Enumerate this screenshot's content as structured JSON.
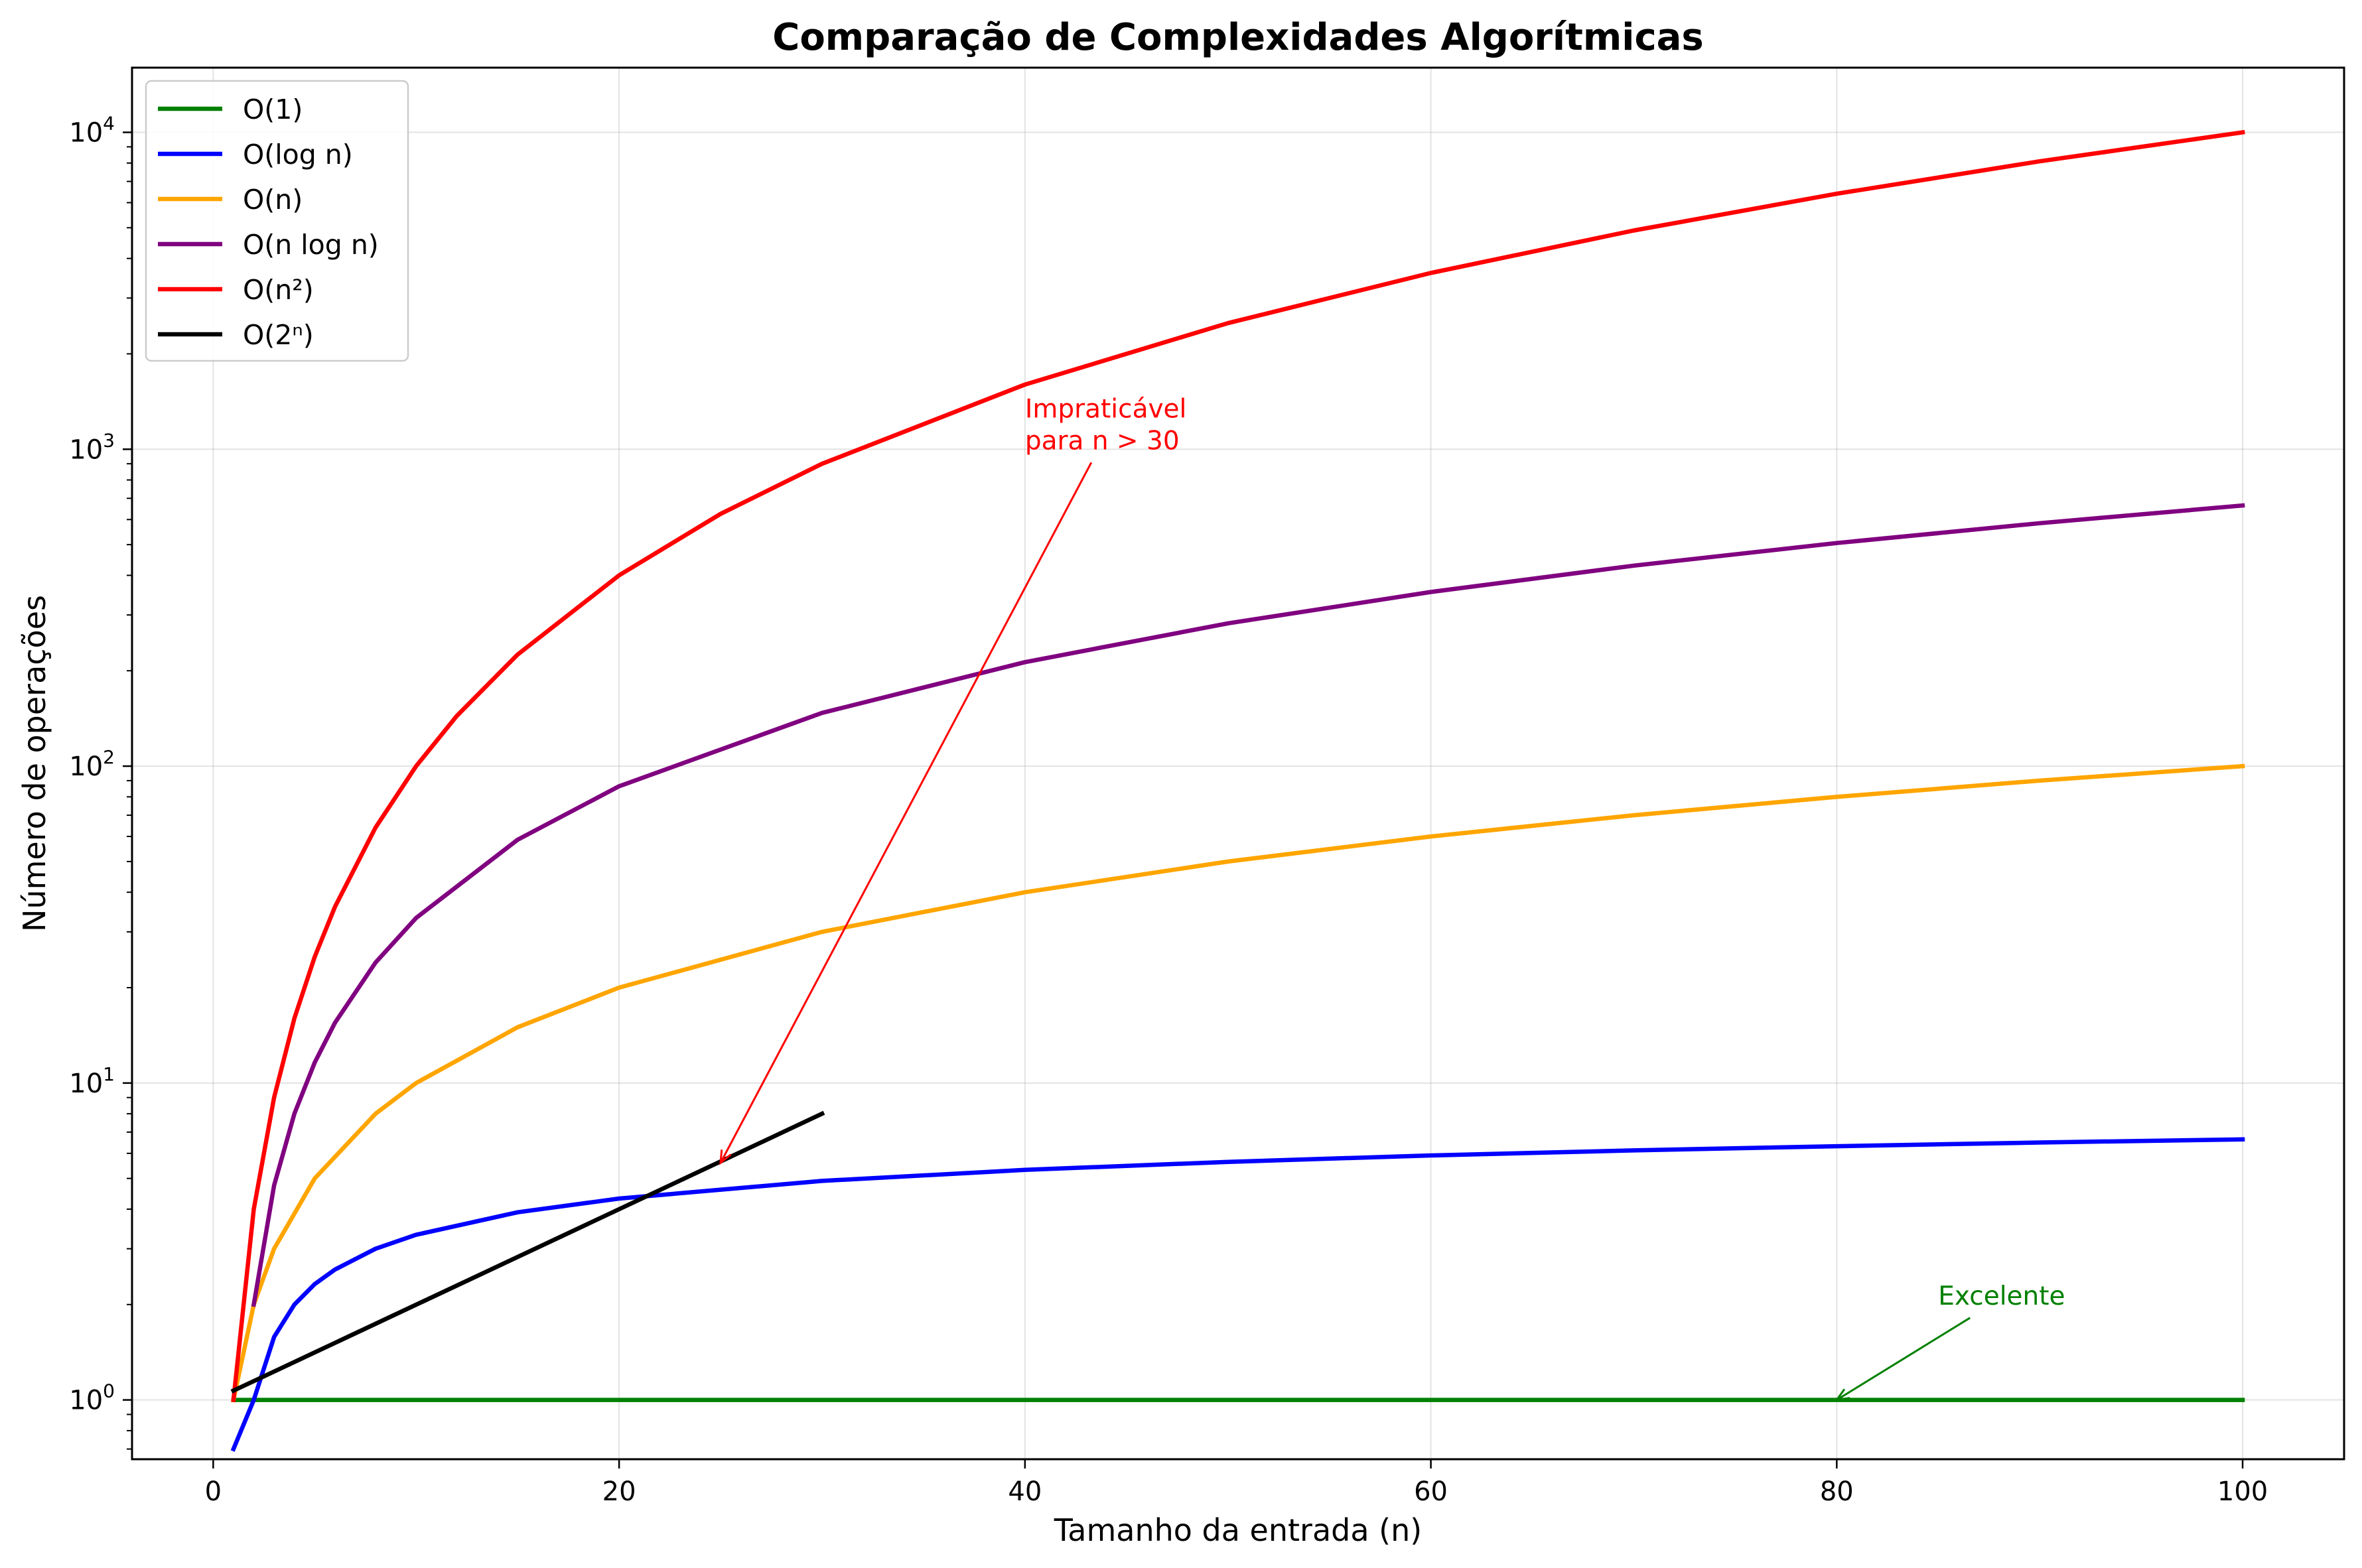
{
  "chart_data": {
    "type": "line",
    "title": "Comparação de Complexidades Algorítmicas",
    "xlabel": "Tamanho da entrada (n)",
    "ylabel": "Número de operações",
    "xlim": [
      -4,
      105
    ],
    "ylim": [
      0.65,
      16000
    ],
    "yscale": "log",
    "grid": true,
    "legend_position": "top-left",
    "x_ticks": [
      0,
      20,
      40,
      60,
      80,
      100
    ],
    "x_tick_labels": [
      "0",
      "20",
      "40",
      "60",
      "80",
      "100"
    ],
    "y_ticks": [
      1,
      10,
      100,
      1000,
      10000
    ],
    "y_tick_labels": [
      {
        "base": "10",
        "exp": "0"
      },
      {
        "base": "10",
        "exp": "1"
      },
      {
        "base": "10",
        "exp": "2"
      },
      {
        "base": "10",
        "exp": "3"
      },
      {
        "base": "10",
        "exp": "4"
      }
    ],
    "series": [
      {
        "name": "O(1)",
        "color": "#008000",
        "x": [
          1,
          100
        ],
        "y": [
          1,
          1
        ]
      },
      {
        "name": "O(log n)",
        "color": "#0000ff",
        "x": [
          1,
          2,
          3,
          4,
          5,
          6,
          8,
          10,
          15,
          20,
          30,
          40,
          50,
          60,
          70,
          80,
          90,
          100
        ],
        "y": [
          0.7,
          1.0,
          1.58,
          2.0,
          2.32,
          2.58,
          3.0,
          3.32,
          3.91,
          4.32,
          4.91,
          5.32,
          5.64,
          5.91,
          6.13,
          6.32,
          6.49,
          6.64
        ]
      },
      {
        "name": "O(n)",
        "color": "#ffa500",
        "x": [
          1,
          2,
          3,
          5,
          8,
          10,
          15,
          20,
          30,
          40,
          50,
          60,
          70,
          80,
          90,
          100
        ],
        "y": [
          1,
          2,
          3,
          5,
          8,
          10,
          15,
          20,
          30,
          40,
          50,
          60,
          70,
          80,
          90,
          100
        ]
      },
      {
        "name": "O(n log n)",
        "color": "#800080",
        "x": [
          2,
          3,
          4,
          5,
          6,
          8,
          10,
          15,
          20,
          30,
          40,
          50,
          60,
          70,
          80,
          90,
          100
        ],
        "y": [
          2.0,
          4.75,
          8.0,
          11.6,
          15.5,
          24.0,
          33.2,
          58.6,
          86.4,
          147.2,
          212.9,
          282.2,
          354.4,
          429.1,
          505.8,
          584.3,
          664.4
        ]
      },
      {
        "name": "O(n²)",
        "color": "#ff0000",
        "x": [
          1,
          2,
          3,
          4,
          5,
          6,
          8,
          10,
          12,
          15,
          20,
          25,
          30,
          40,
          50,
          60,
          70,
          80,
          90,
          100
        ],
        "y": [
          1,
          4,
          9,
          16,
          25,
          36,
          64,
          100,
          144,
          225,
          400,
          625,
          900,
          1600,
          2500,
          3600,
          4900,
          6400,
          8100,
          10000
        ]
      },
      {
        "name": "O(2ⁿ)",
        "color": "#000000",
        "x": [
          1,
          30
        ],
        "y": [
          1.07,
          8.0
        ]
      }
    ],
    "annotations": [
      {
        "text_lines": [
          "Impraticável",
          "para n > 30"
        ],
        "color": "#ff0000",
        "text_x": 40,
        "text_y": 1000,
        "arrow_x": 25,
        "arrow_y": 5.6
      },
      {
        "text_lines": [
          "Excelente"
        ],
        "color": "#008000",
        "text_x": 85,
        "text_y": 2.0,
        "arrow_x": 80,
        "arrow_y": 1.0
      }
    ]
  }
}
